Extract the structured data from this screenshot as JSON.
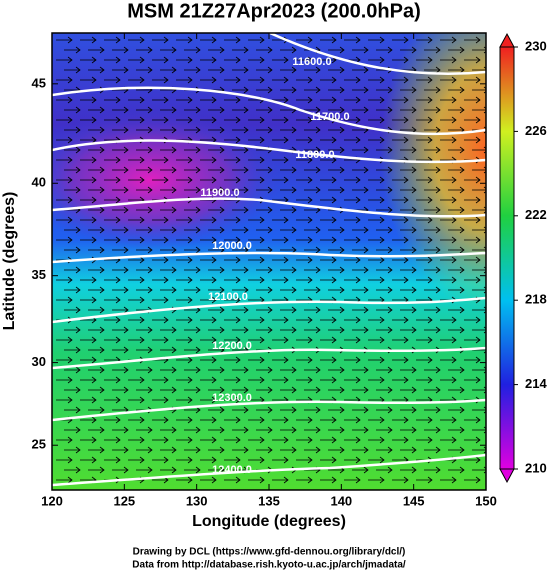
{
  "chart_data": {
    "type": "map",
    "title": "MSM 21Z27Apr2023 (200.0hPa)",
    "x_label": "Longitude (degrees)",
    "y_label": "Latitude  (degrees)",
    "xlim": [
      120,
      150
    ],
    "xticks": [
      120,
      125,
      130,
      135,
      140,
      145,
      150
    ],
    "ylim": [
      22.2,
      47.4
    ],
    "yticks": [
      25,
      30,
      35,
      40,
      45
    ],
    "yscale": "mercator",
    "colorbar": {
      "lim": [
        210,
        230
      ],
      "ticks": [
        210,
        214,
        218,
        222,
        226,
        230
      ]
    },
    "contours": [
      {
        "value": 11600,
        "label": "11600.0"
      },
      {
        "value": 11700,
        "label": "11700.0"
      },
      {
        "value": 11800,
        "label": "11800.0"
      },
      {
        "value": 11900,
        "label": "11900.0"
      },
      {
        "value": 12000,
        "label": "12000.0"
      },
      {
        "value": 12100,
        "label": "12100.0"
      },
      {
        "value": 12200,
        "label": "12200.0"
      },
      {
        "value": 12300,
        "label": "12300.0"
      },
      {
        "value": 12400,
        "label": "12400.0"
      }
    ],
    "footer": [
      "Drawing by DCL (https://www.gfd-dennou.org/library/dcl/)",
      "Data from http://database.rish.kyoto-u.ac.jp/arch/jmadata/"
    ]
  }
}
